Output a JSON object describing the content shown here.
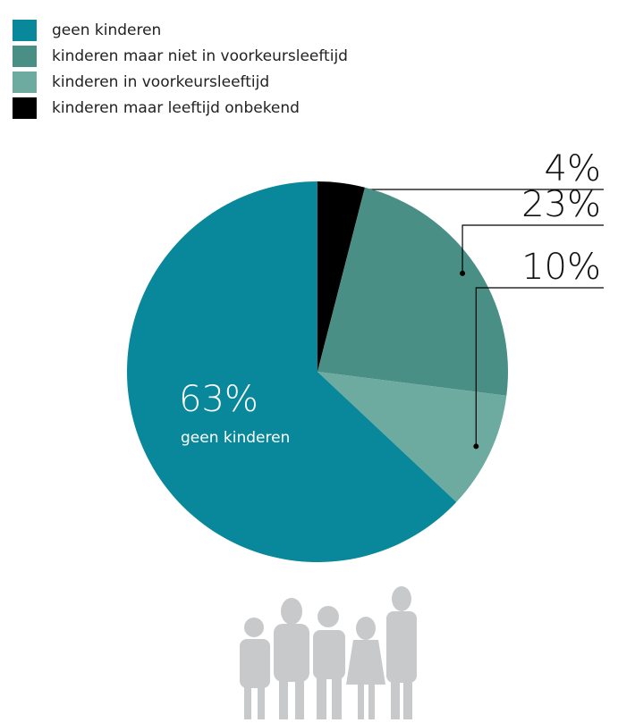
{
  "chart_data": {
    "type": "pie",
    "categories": [
      "kinderen maar leeftijd onbekend",
      "kinderen maar niet in voorkeursleeftijd",
      "kinderen in voorkeursleeftijd",
      "geen kinderen"
    ],
    "values": [
      4,
      23,
      10,
      63
    ],
    "value_labels": [
      "4%",
      "23%",
      "10%",
      "63%"
    ],
    "colors": [
      "#000000",
      "#4a8f85",
      "#6daaa0",
      "#08889a"
    ]
  }
}
